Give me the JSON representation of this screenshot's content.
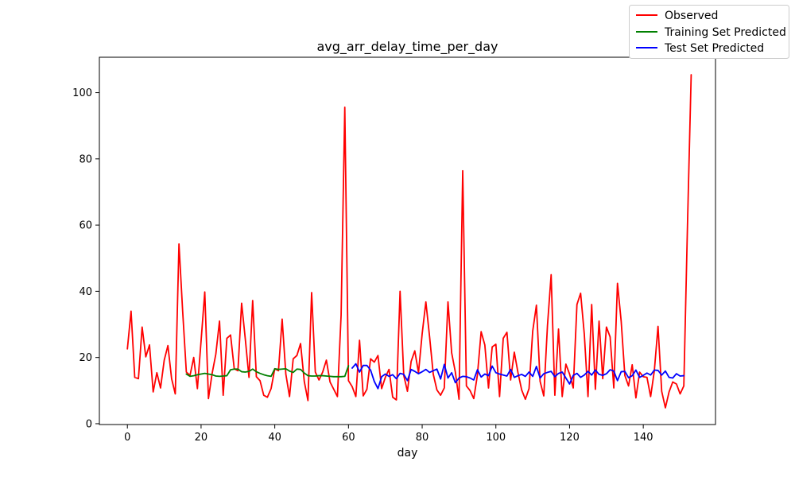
{
  "chart_data": {
    "type": "line",
    "title": "avg_arr_delay_time_per_day",
    "xlabel": "day",
    "ylabel": "",
    "xlim": [
      -7.6,
      159.6
    ],
    "ylim": [
      -0.25,
      110.7
    ],
    "xticks": [
      0,
      20,
      40,
      60,
      80,
      100,
      120,
      140
    ],
    "yticks": [
      0,
      20,
      40,
      60,
      80,
      100
    ],
    "grid": false,
    "legend_position": "outside-top-right",
    "series": [
      {
        "name": "Observed",
        "color": "#ff0000",
        "x_start": 0,
        "values": [
          22.6,
          34.0,
          14.0,
          13.6,
          29.2,
          20.2,
          23.8,
          9.6,
          15.4,
          10.8,
          19.2,
          23.6,
          13.6,
          9.0,
          54.3,
          34.0,
          15.6,
          14.6,
          20.0,
          10.6,
          25.0,
          39.8,
          7.6,
          15.2,
          21.0,
          31.0,
          8.6,
          25.8,
          26.8,
          16.6,
          16.0,
          36.4,
          25.6,
          14.0,
          37.2,
          14.2,
          13.0,
          8.6,
          8.0,
          10.6,
          16.6,
          16.0,
          31.6,
          15.0,
          8.2,
          19.6,
          20.6,
          24.2,
          12.8,
          7.0,
          39.6,
          15.6,
          13.2,
          15.6,
          19.2,
          12.6,
          10.4,
          8.2,
          32.8,
          95.6,
          13.0,
          11.2,
          8.2,
          25.2,
          8.4,
          10.4,
          19.6,
          18.6,
          20.6,
          10.6,
          14.0,
          16.4,
          8.0,
          7.2,
          40.0,
          14.6,
          9.8,
          18.8,
          22.0,
          15.4,
          27.2,
          36.8,
          26.4,
          15.0,
          10.2,
          8.6,
          10.8,
          36.8,
          21.4,
          15.6,
          7.4,
          76.4,
          11.4,
          10.0,
          7.6,
          14.8,
          27.8,
          23.8,
          10.8,
          23.2,
          24.0,
          8.2,
          25.8,
          27.6,
          13.2,
          21.6,
          15.4,
          10.2,
          7.4,
          10.6,
          28.0,
          35.8,
          12.8,
          8.4,
          29.6,
          45.0,
          8.6,
          28.6,
          8.2,
          18.0,
          15.0,
          10.8,
          36.0,
          39.4,
          27.0,
          8.2,
          36.0,
          10.4,
          31.0,
          13.6,
          29.2,
          26.2,
          10.8,
          42.4,
          31.0,
          14.6,
          11.4,
          17.8,
          7.8,
          15.6,
          14.2,
          14.0,
          8.2,
          16.0,
          29.4,
          9.8,
          4.8,
          9.6,
          12.6,
          12.0,
          9.0,
          11.4,
          60.0,
          105.4
        ]
      },
      {
        "name": "Training Set Predicted",
        "color": "#008000",
        "x_start": 16,
        "values": [
          15.0,
          14.3,
          14.5,
          14.8,
          15.0,
          15.2,
          15.0,
          14.8,
          14.4,
          14.3,
          14.4,
          14.5,
          16.3,
          16.5,
          16.5,
          15.7,
          15.6,
          15.8,
          16.5,
          15.7,
          15.2,
          14.8,
          14.5,
          14.3,
          16.6,
          16.4,
          16.5,
          16.6,
          15.9,
          15.5,
          16.5,
          16.4,
          15.3,
          14.5,
          14.4,
          14.4,
          14.5,
          14.5,
          14.4,
          14.3,
          14.2,
          14.2,
          14.2,
          14.3,
          17.5
        ]
      },
      {
        "name": "Test Set Predicted",
        "color": "#0000ff",
        "x_start": 61,
        "values": [
          16.8,
          18.1,
          15.6,
          17.6,
          17.6,
          16.2,
          12.8,
          10.6,
          14.2,
          15.0,
          14.3,
          14.8,
          13.6,
          15.2,
          14.9,
          13.0,
          16.4,
          15.8,
          15.1,
          15.7,
          16.4,
          15.5,
          16.0,
          16.5,
          13.5,
          17.9,
          13.8,
          15.4,
          12.4,
          13.8,
          14.3,
          14.2,
          13.8,
          13.2,
          16.3,
          14.1,
          15.0,
          14.5,
          17.4,
          15.4,
          15.0,
          14.7,
          14.4,
          16.4,
          14.0,
          14.5,
          14.9,
          14.3,
          15.6,
          14.3,
          17.3,
          13.8,
          15.1,
          15.5,
          15.8,
          14.2,
          15.2,
          15.6,
          13.8,
          12.0,
          14.6,
          15.2,
          14.0,
          14.7,
          15.8,
          14.7,
          16.2,
          14.9,
          14.6,
          15.1,
          16.3,
          15.9,
          13.0,
          15.7,
          15.8,
          13.9,
          14.5,
          16.2,
          14.0,
          14.6,
          15.3,
          14.7,
          16.2,
          16.1,
          14.7,
          15.9,
          14.0,
          13.8,
          15.1,
          14.4,
          14.5
        ]
      }
    ]
  }
}
